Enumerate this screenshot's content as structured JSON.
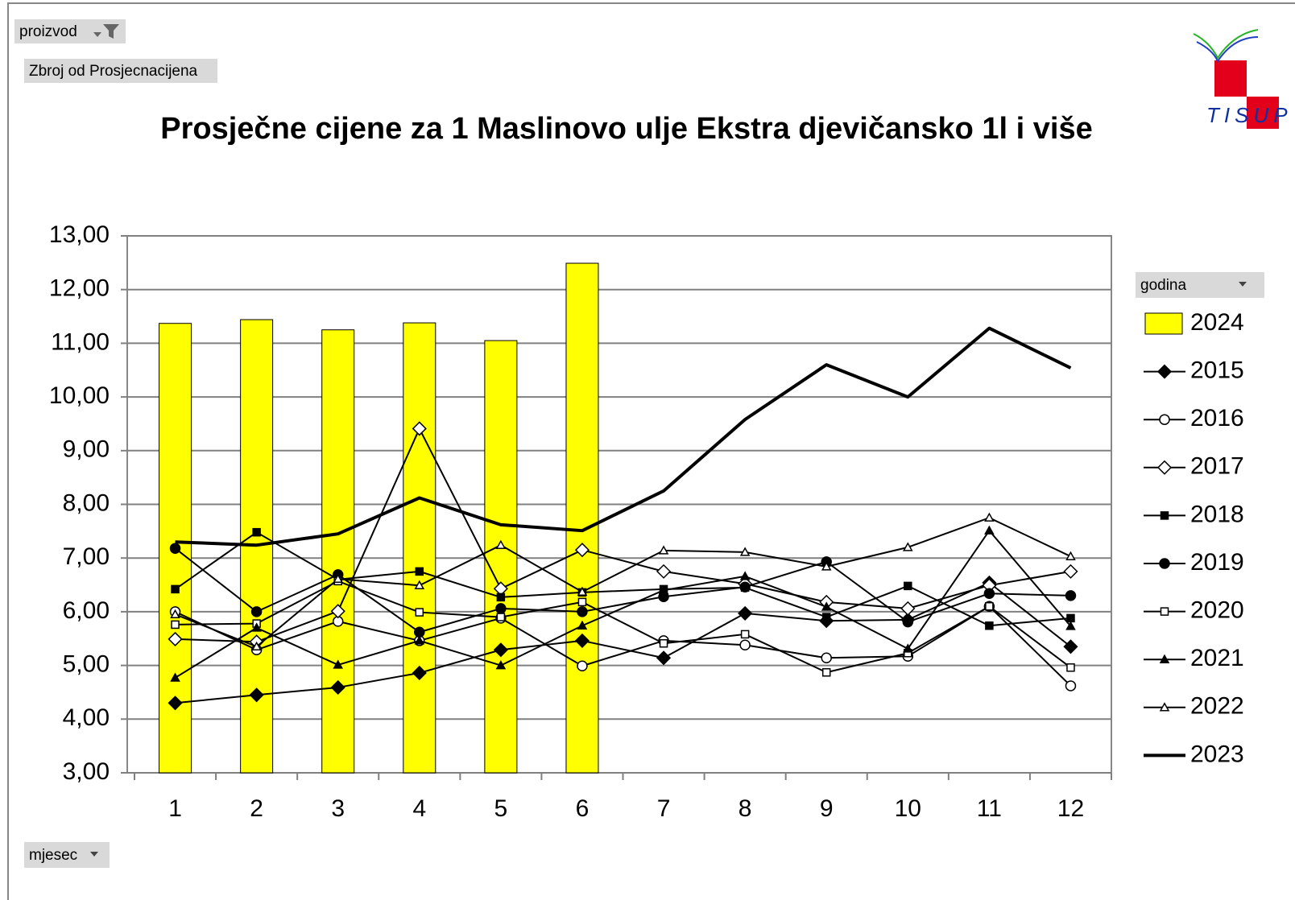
{
  "filter_labels": {
    "product": "proizvod",
    "measure": "Zbroj od Prosjecnacijena",
    "legend_field": "godina",
    "axis_field": "mjesec"
  },
  "logo": {
    "text": "TISUP"
  },
  "chart_data": {
    "type": "combo",
    "title": "Prosječne cijene za 1 Maslinovo ulje Ekstra djevičansko 1l i više",
    "categories": [
      "1",
      "2",
      "3",
      "4",
      "5",
      "6",
      "7",
      "8",
      "9",
      "10",
      "11",
      "12"
    ],
    "ylim": [
      3,
      13
    ],
    "yticks": [
      {
        "value": 3,
        "label": "3,00"
      },
      {
        "value": 4,
        "label": "4,00"
      },
      {
        "value": 5,
        "label": "5,00"
      },
      {
        "value": 6,
        "label": "6,00"
      },
      {
        "value": 7,
        "label": "7,00"
      },
      {
        "value": 8,
        "label": "8,00"
      },
      {
        "value": 9,
        "label": "9,00"
      },
      {
        "value": 10,
        "label": "10,00"
      },
      {
        "value": 11,
        "label": "11,00"
      },
      {
        "value": 12,
        "label": "12,00"
      },
      {
        "value": 13,
        "label": "13,00"
      }
    ],
    "grid": true,
    "legend": "right",
    "series": [
      {
        "name": "2024",
        "type": "bar",
        "color": "#ffff00",
        "values": [
          11.37,
          11.44,
          11.25,
          11.38,
          11.05,
          12.49,
          null,
          null,
          null,
          null,
          null,
          null
        ]
      },
      {
        "name": "2015",
        "type": "line",
        "color": "#000000",
        "marker": "diamond-filled",
        "values": [
          4.3,
          4.45,
          4.59,
          4.86,
          5.29,
          5.46,
          5.14,
          5.97,
          5.83,
          5.85,
          6.54,
          5.35
        ]
      },
      {
        "name": "2016",
        "type": "line",
        "color": "#000000",
        "marker": "circle-open",
        "values": [
          6.0,
          5.29,
          5.82,
          5.46,
          5.88,
          4.99,
          5.46,
          5.38,
          5.14,
          5.17,
          6.1,
          4.62
        ]
      },
      {
        "name": "2017",
        "type": "line",
        "color": "#000000",
        "marker": "diamond-open",
        "values": [
          5.49,
          5.44,
          6.01,
          9.41,
          6.43,
          7.15,
          6.75,
          6.52,
          6.18,
          6.06,
          6.49,
          6.75
        ]
      },
      {
        "name": "2018",
        "type": "line",
        "color": "#000000",
        "marker": "square-filled",
        "values": [
          6.42,
          7.48,
          6.6,
          6.75,
          6.27,
          6.36,
          6.42,
          6.45,
          5.9,
          6.48,
          5.74,
          5.88
        ]
      },
      {
        "name": "2019",
        "type": "line",
        "color": "#000000",
        "marker": "circle-filled",
        "values": [
          7.18,
          6.0,
          6.69,
          5.62,
          6.06,
          6.0,
          6.28,
          6.46,
          6.93,
          5.81,
          6.34,
          6.3
        ]
      },
      {
        "name": "2020",
        "type": "line",
        "color": "#000000",
        "marker": "square-open",
        "values": [
          5.76,
          5.78,
          6.57,
          5.99,
          5.9,
          6.18,
          5.41,
          5.58,
          4.87,
          5.23,
          6.1,
          4.96
        ]
      },
      {
        "name": "2021",
        "type": "line",
        "color": "#000000",
        "marker": "triangle-filled",
        "values": [
          4.77,
          5.7,
          5.01,
          5.46,
          5.0,
          5.74,
          6.4,
          6.66,
          6.09,
          5.31,
          7.51,
          5.73
        ]
      },
      {
        "name": "2022",
        "type": "line",
        "color": "#000000",
        "marker": "triangle-open",
        "values": [
          5.95,
          5.35,
          6.61,
          6.49,
          7.24,
          6.37,
          7.14,
          7.11,
          6.84,
          7.2,
          7.75,
          7.03
        ]
      },
      {
        "name": "2023",
        "type": "line",
        "color": "#000000",
        "marker": "none",
        "width": 4,
        "values": [
          7.3,
          7.24,
          7.45,
          8.12,
          7.62,
          7.51,
          8.25,
          9.58,
          10.6,
          10.0,
          11.28,
          10.54
        ]
      }
    ]
  }
}
